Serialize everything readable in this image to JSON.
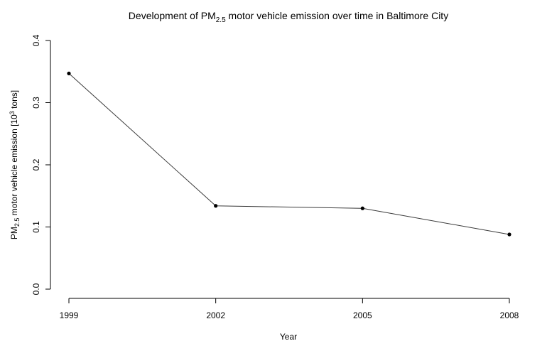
{
  "chart_data": {
    "type": "line",
    "title": {
      "prefix": "Development of PM",
      "subscript": "2.5",
      "suffix": " motor vehicle emission over time in Baltimore City"
    },
    "xlabel": "Year",
    "ylabel": {
      "prefix": "PM",
      "subscript": "2.5",
      "middle": " motor vehicle emission [10",
      "superscript": "3",
      "suffix": " tons]"
    },
    "x": [
      1999,
      2002,
      2005,
      2008
    ],
    "x_tick_labels": [
      "1999",
      "2002",
      "2005",
      "2008"
    ],
    "y": [
      0.347,
      0.134,
      0.13,
      0.088
    ],
    "y_ticks": [
      0.0,
      0.1,
      0.2,
      0.3,
      0.4
    ],
    "y_tick_labels": [
      "0.0",
      "0.1",
      "0.2",
      "0.3",
      "0.4"
    ],
    "ylim": [
      0.0,
      0.4
    ],
    "xlim": [
      1999,
      2008
    ],
    "grid": false,
    "line_color": "#3a3a3a",
    "point_color": "#000000"
  }
}
